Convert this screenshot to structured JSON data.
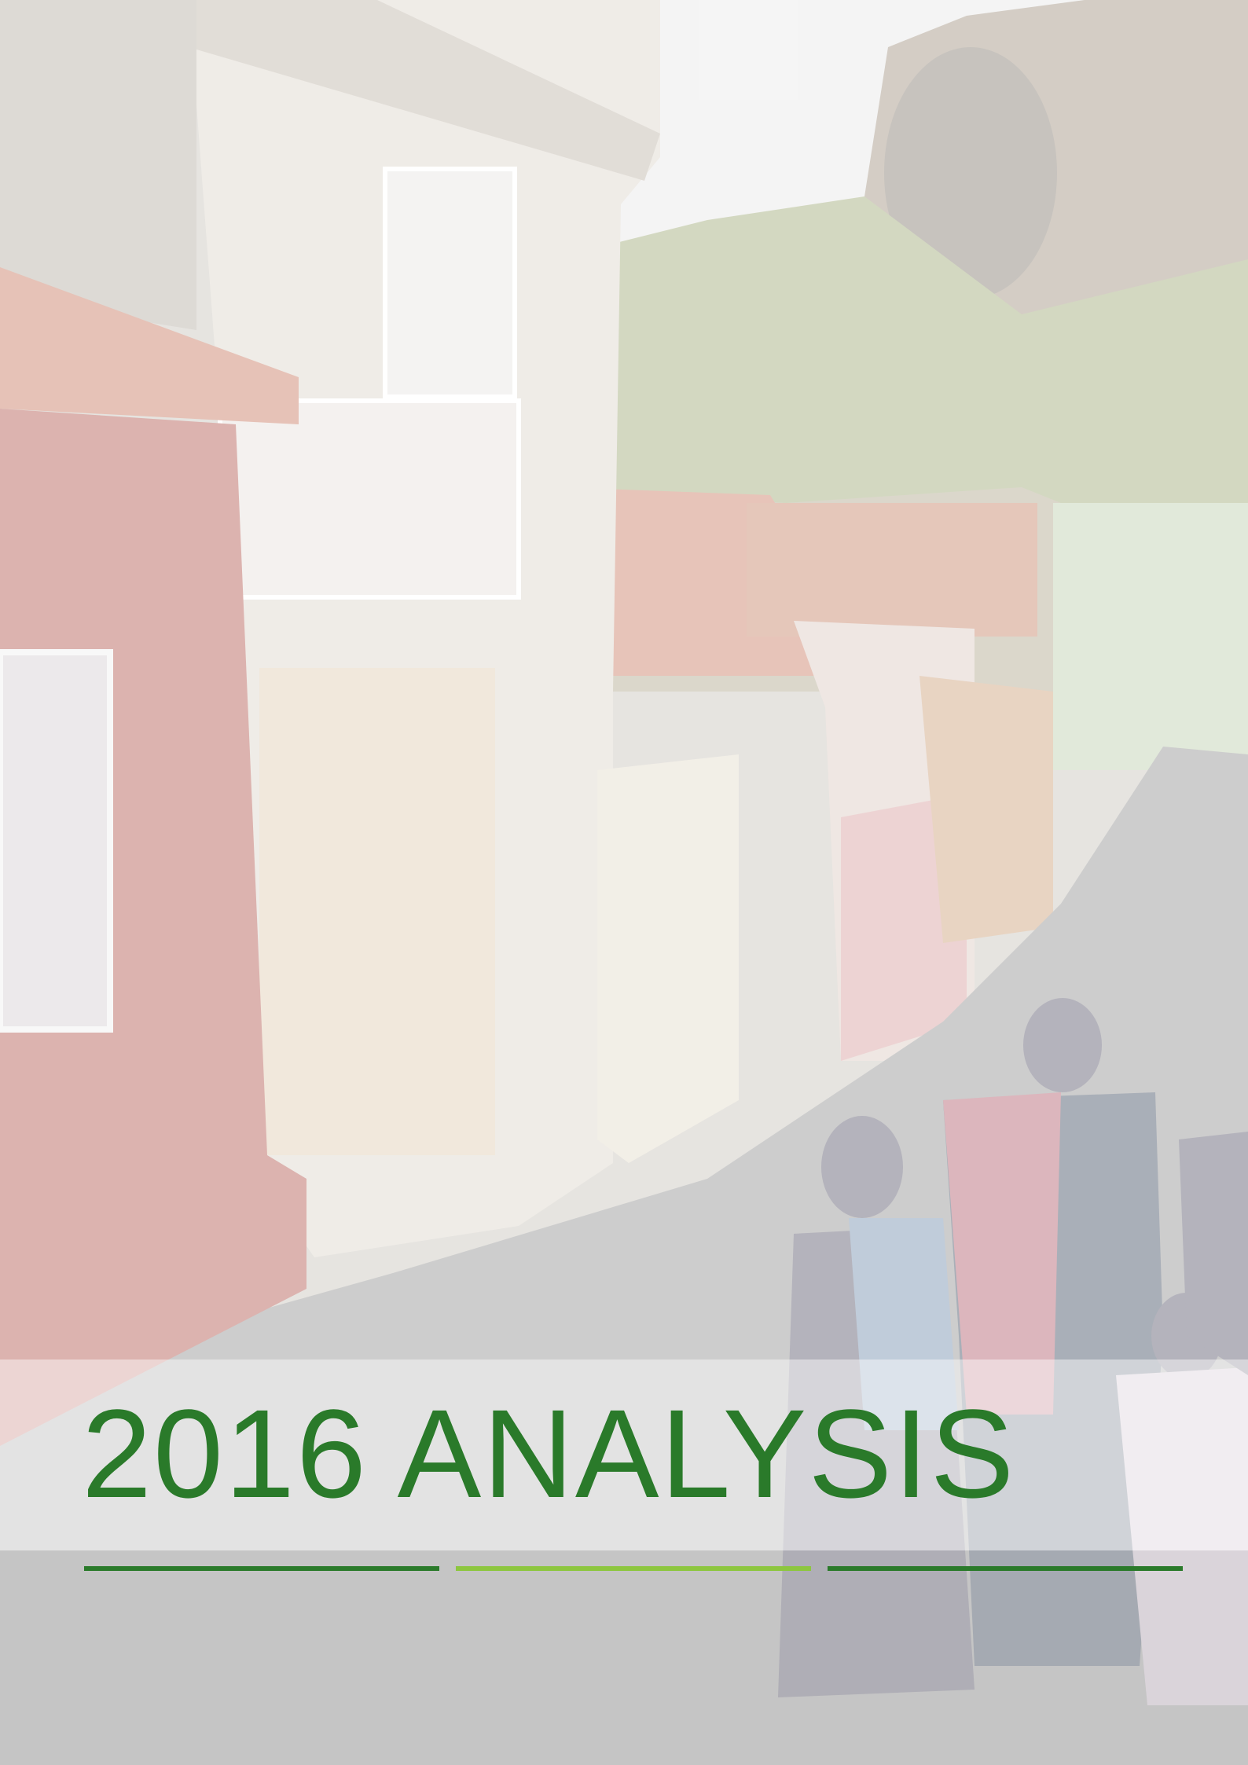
{
  "cover": {
    "title": "2016 ANALYSIS"
  }
}
